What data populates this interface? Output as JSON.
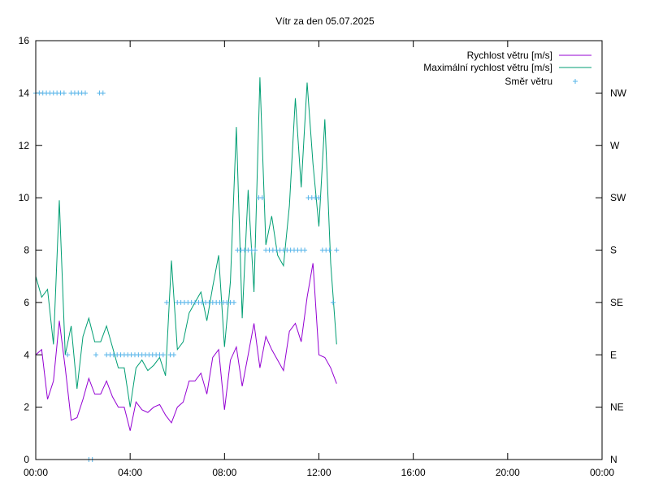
{
  "chart_data": {
    "type": "line",
    "title": "Vítr za den 05.07.2025",
    "x_ticks": [
      "00:00",
      "04:00",
      "08:00",
      "12:00",
      "16:00",
      "20:00",
      "00:00"
    ],
    "x_range_hours": [
      0,
      24
    ],
    "ylim": [
      0,
      16
    ],
    "y_ticks": [
      "0",
      "2",
      "4",
      "6",
      "8",
      "10",
      "12",
      "14",
      "16"
    ],
    "y2_ticks": [
      "N",
      "NE",
      "E",
      "SE",
      "S",
      "SW",
      "W",
      "NW"
    ],
    "legend_position": "top-right",
    "grid": false,
    "series": [
      {
        "name": "Rychlost větru [m/s]",
        "color": "#9400d3",
        "x": [
          0,
          0.25,
          0.5,
          0.75,
          1,
          1.25,
          1.5,
          1.75,
          2,
          2.25,
          2.5,
          2.75,
          3,
          3.25,
          3.5,
          3.75,
          4,
          4.25,
          4.5,
          4.75,
          5,
          5.25,
          5.5,
          5.75,
          6,
          6.25,
          6.5,
          6.75,
          7,
          7.25,
          7.5,
          7.75,
          8,
          8.25,
          8.5,
          8.75,
          9,
          9.25,
          9.5,
          9.75,
          10,
          10.25,
          10.5,
          10.75,
          11,
          11.25,
          11.5,
          11.75,
          12,
          12.25,
          12.5,
          12.75
        ],
        "values": [
          4.0,
          4.2,
          2.3,
          3.0,
          5.3,
          3.5,
          1.5,
          1.6,
          2.3,
          3.1,
          2.5,
          2.5,
          3.0,
          2.4,
          2.0,
          2.0,
          1.1,
          2.2,
          1.9,
          1.8,
          2.0,
          2.1,
          1.7,
          1.4,
          2.0,
          2.2,
          3.0,
          3.0,
          3.3,
          2.5,
          3.9,
          4.2,
          1.9,
          3.8,
          4.3,
          2.8,
          4.0,
          5.2,
          3.5,
          4.7,
          4.2,
          3.8,
          3.4,
          4.9,
          5.2,
          4.5,
          6.2,
          7.5,
          4.0,
          3.9,
          3.5,
          2.9
        ]
      },
      {
        "name": "Maximální rychlost větru [m/s]",
        "color": "#009e73",
        "x": [
          0,
          0.25,
          0.5,
          0.75,
          1,
          1.25,
          1.5,
          1.75,
          2,
          2.25,
          2.5,
          2.75,
          3,
          3.25,
          3.5,
          3.75,
          4,
          4.25,
          4.5,
          4.75,
          5,
          5.25,
          5.5,
          5.75,
          6,
          6.25,
          6.5,
          6.75,
          7,
          7.25,
          7.5,
          7.75,
          8,
          8.25,
          8.5,
          8.75,
          9,
          9.25,
          9.5,
          9.75,
          10,
          10.25,
          10.5,
          10.75,
          11,
          11.25,
          11.5,
          11.75,
          12,
          12.25,
          12.5,
          12.75
        ],
        "values": [
          7.0,
          6.2,
          6.5,
          4.4,
          9.9,
          4.0,
          5.1,
          2.7,
          4.7,
          5.4,
          4.5,
          4.5,
          5.1,
          4.3,
          3.5,
          3.5,
          2.0,
          3.5,
          3.8,
          3.4,
          3.6,
          3.9,
          3.2,
          7.6,
          4.2,
          4.5,
          5.6,
          6.0,
          6.4,
          5.3,
          6.6,
          7.8,
          4.3,
          6.8,
          12.7,
          5.4,
          10.3,
          6.4,
          14.6,
          8.2,
          9.3,
          7.8,
          7.4,
          9.7,
          13.8,
          10.4,
          14.4,
          11.3,
          8.9,
          13.0,
          7.5,
          4.4
        ]
      },
      {
        "name": "Směr větru",
        "color": "#56b4e9",
        "marker": "+",
        "x": [
          0,
          0.15,
          0.3,
          0.45,
          0.6,
          0.75,
          0.9,
          1.05,
          1.2,
          1.35,
          1.5,
          1.65,
          1.8,
          1.95,
          2.1,
          2.25,
          2.4,
          2.55,
          2.7,
          2.85,
          3.0,
          3.15,
          3.3,
          3.45,
          3.6,
          3.75,
          3.9,
          4.05,
          4.2,
          4.35,
          4.5,
          4.65,
          4.8,
          4.95,
          5.1,
          5.25,
          5.4,
          5.55,
          5.7,
          5.85,
          6.0,
          6.15,
          6.3,
          6.45,
          6.6,
          6.75,
          6.9,
          7.05,
          7.2,
          7.35,
          7.5,
          7.65,
          7.8,
          7.95,
          8.1,
          8.25,
          8.4,
          8.55,
          8.7,
          8.85,
          9.0,
          9.15,
          9.3,
          9.45,
          9.6,
          9.75,
          9.9,
          10.05,
          10.2,
          10.35,
          10.5,
          10.65,
          10.8,
          10.95,
          11.1,
          11.25,
          11.4,
          11.55,
          11.7,
          11.85,
          12.0,
          12.15,
          12.3,
          12.45,
          12.6,
          12.75
        ],
        "values": [
          7,
          7,
          7,
          7,
          7,
          7,
          7,
          7,
          7,
          2,
          7,
          7,
          7,
          7,
          7,
          0,
          0,
          2,
          7,
          7,
          2,
          2,
          2,
          2,
          2,
          2,
          2,
          2,
          2,
          2,
          2,
          2,
          2,
          2,
          2,
          2,
          2,
          3,
          2,
          2,
          3,
          3,
          3,
          3,
          3,
          3,
          3,
          3,
          3,
          3,
          3,
          3,
          3,
          3,
          3,
          3,
          3,
          4,
          4,
          4,
          4,
          4,
          4,
          5,
          5,
          4,
          4,
          4,
          4,
          4,
          4,
          4,
          4,
          4,
          4,
          4,
          4,
          5,
          5,
          5,
          5,
          4,
          4,
          4,
          3,
          4
        ]
      }
    ]
  }
}
